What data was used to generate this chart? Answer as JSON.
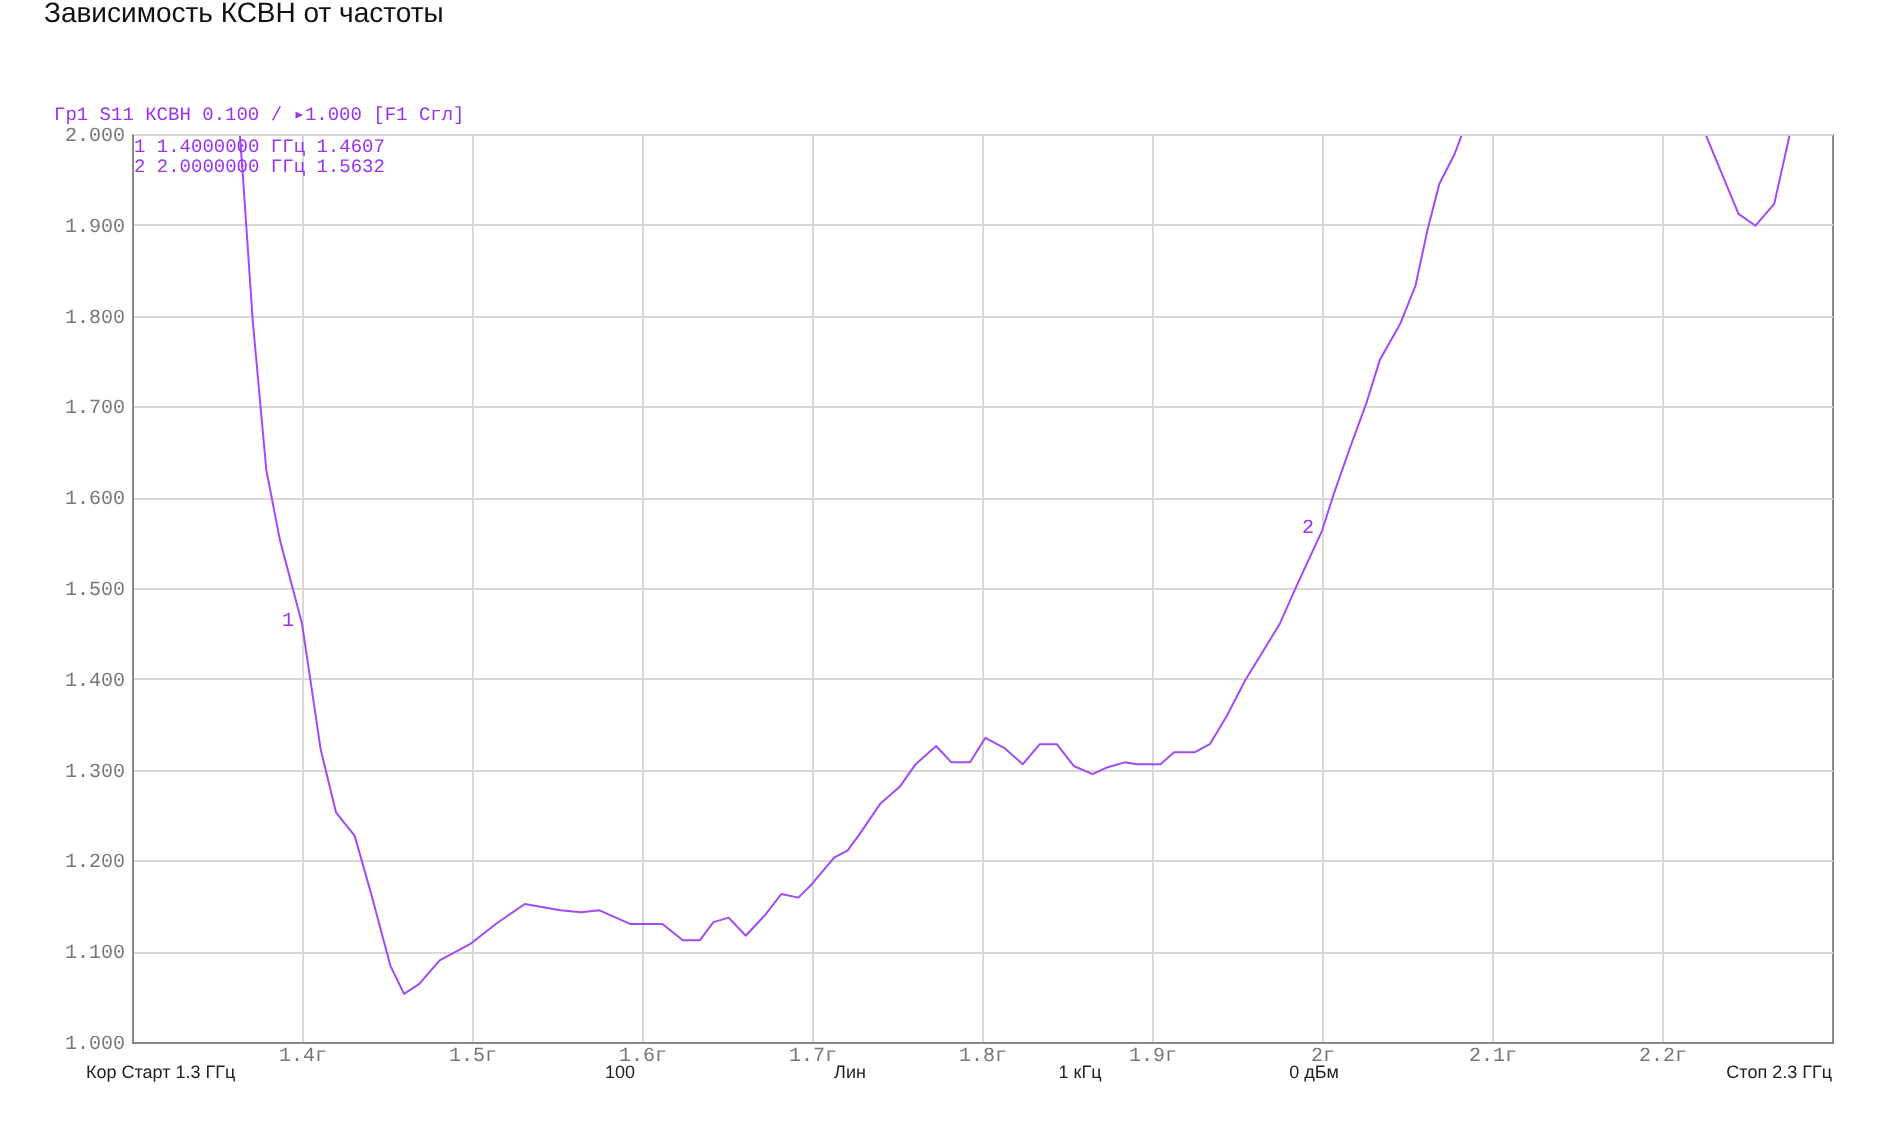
{
  "chart_data": {
    "type": "line",
    "title": "Зависимость КСВН от частоты",
    "annotations": [
      "Гр1 S11 КСВН 0.100 / ▸1.000 [F1 Сгл]",
      "1 1.4000000 ГГц  1.4607",
      "2 2.0000000 ГГц  1.5632",
      "Кор Старт 1.3 ГГц",
      "100",
      "Лин",
      "1 кГц",
      "0 дБм",
      "Стоп 2.3 ГГц",
      {
        "text": "1",
        "x": 1.4,
        "y": 1.4607
      },
      {
        "text": "2",
        "x": 2.0,
        "y": 1.5632
      }
    ],
    "x": [
      1.3635,
      1.365,
      1.371,
      1.379,
      1.387,
      1.4,
      1.411,
      1.42,
      1.431,
      1.441,
      1.452,
      1.46,
      1.469,
      1.481,
      1.499,
      1.514,
      1.531,
      1.552,
      1.564,
      1.575,
      1.593,
      1.612,
      1.624,
      1.634,
      1.642,
      1.651,
      1.661,
      1.672,
      1.682,
      1.692,
      1.699,
      1.713,
      1.721,
      1.728,
      1.74,
      1.752,
      1.761,
      1.773,
      1.782,
      1.793,
      1.802,
      1.813,
      1.824,
      1.834,
      1.844,
      1.854,
      1.865,
      1.873,
      1.884,
      1.891,
      1.905,
      1.913,
      1.925,
      1.934,
      1.944,
      1.955,
      1.975,
      1.985,
      2.0,
      2.007,
      2.016,
      2.026,
      2.034,
      2.046,
      2.055,
      2.062,
      2.069,
      2.078,
      2.082,
      2.15,
      2.226,
      2.245,
      2.255,
      2.266,
      2.275
    ],
    "series": [
      {
        "color": "#a24bf5",
        "values": [
          1.998,
          1.96,
          1.795,
          1.63,
          1.553,
          1.461,
          1.322,
          1.253,
          1.227,
          1.161,
          1.084,
          1.053,
          1.064,
          1.09,
          1.108,
          1.13,
          1.152,
          1.145,
          1.143,
          1.145,
          1.13,
          1.13,
          1.112,
          1.112,
          1.132,
          1.137,
          1.117,
          1.139,
          1.163,
          1.159,
          1.172,
          1.203,
          1.211,
          1.229,
          1.262,
          1.282,
          1.306,
          1.326,
          1.308,
          1.308,
          1.335,
          1.324,
          1.306,
          1.328,
          1.328,
          1.304,
          1.295,
          1.302,
          1.308,
          1.306,
          1.306,
          1.319,
          1.319,
          1.328,
          1.359,
          1.399,
          1.46,
          1.502,
          1.563,
          1.604,
          1.652,
          1.703,
          1.751,
          1.791,
          1.833,
          1.894,
          1.945,
          1.978,
          1.998,
          null,
          1.998,
          1.912,
          1.899,
          1.923,
          1.998
        ]
      }
    ],
    "xlim": [
      1.3,
      2.3
    ],
    "xticks": [
      {
        "value": 1.4,
        "label": "1.4г"
      },
      {
        "value": 1.5,
        "label": "1.5г"
      },
      {
        "value": 1.6,
        "label": "1.6г"
      },
      {
        "value": 1.7,
        "label": "1.7г"
      },
      {
        "value": 1.8,
        "label": "1.8г"
      },
      {
        "value": 1.9,
        "label": "1.9г"
      },
      {
        "value": 2.0,
        "label": "2г"
      },
      {
        "value": 2.1,
        "label": "2.1г"
      },
      {
        "value": 2.2,
        "label": "2.2г"
      }
    ],
    "ylim": [
      1,
      2
    ],
    "yticks": [
      {
        "value": 1.0,
        "label": "1.000"
      },
      {
        "value": 1.1,
        "label": "1.100"
      },
      {
        "value": 1.2,
        "label": "1.200"
      },
      {
        "value": 1.3,
        "label": "1.300"
      },
      {
        "value": 1.4,
        "label": "1.400"
      },
      {
        "value": 1.5,
        "label": "1.500"
      },
      {
        "value": 1.6,
        "label": "1.600"
      },
      {
        "value": 1.7,
        "label": "1.700"
      },
      {
        "value": 1.8,
        "label": "1.800"
      },
      {
        "value": 1.9,
        "label": "1.900"
      },
      {
        "value": 2.0,
        "label": "2.000"
      }
    ],
    "grid": true,
    "marker": "none",
    "line_style": "solid"
  }
}
